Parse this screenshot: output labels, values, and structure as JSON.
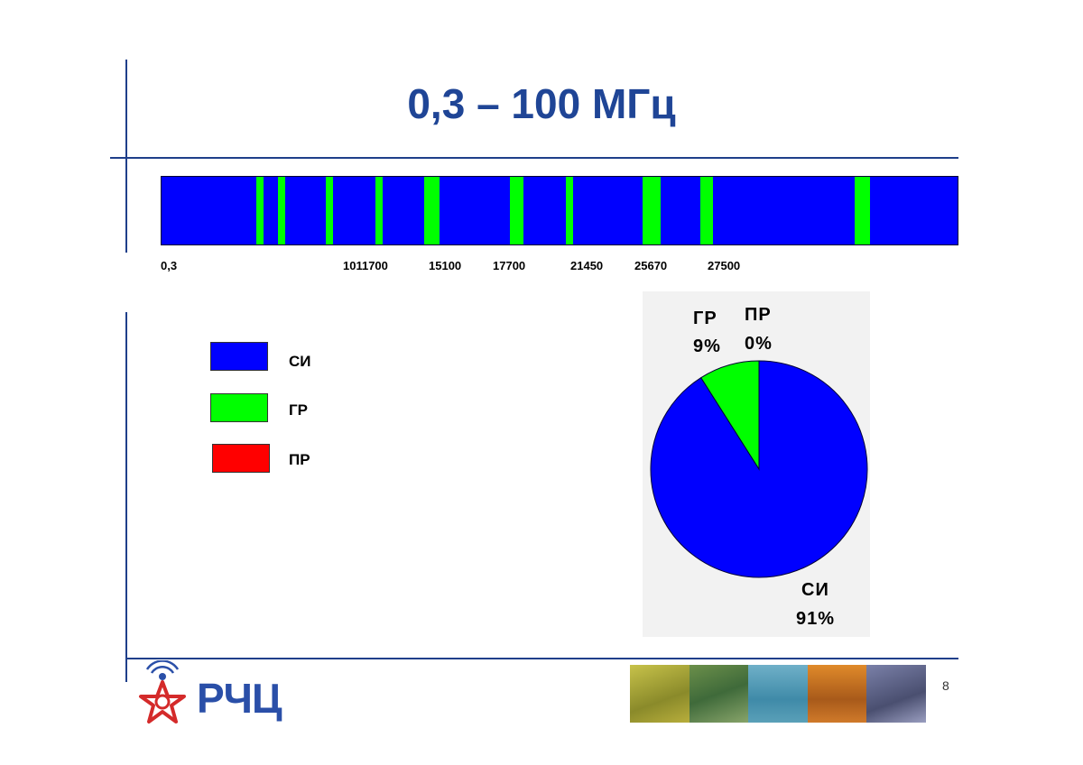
{
  "slide": {
    "title": "0,3 – 100  МГц",
    "page_number": "8",
    "logo_text": "РЧЦ"
  },
  "band_chart": {
    "bar_color": "#0000ff",
    "band_color": "#00ff00",
    "labels": [
      "0,3",
      "1011700",
      "15100",
      "17700",
      "21450",
      "25670",
      "27500"
    ]
  },
  "legend": {
    "items": [
      {
        "label": "СИ",
        "color": "#0000ff"
      },
      {
        "label": "ГР",
        "color": "#00ff00"
      },
      {
        "label": "ПР",
        "color": "#ff0000"
      }
    ]
  },
  "chart_data": {
    "type": "pie",
    "categories": [
      "СИ",
      "ГР",
      "ПР"
    ],
    "values": [
      91,
      9,
      0
    ],
    "value_labels": [
      "91%",
      "9%",
      "0%"
    ],
    "colors": [
      "#0000ff",
      "#00ff00",
      "#ff0000"
    ]
  },
  "colors": {
    "title": "#1f4596",
    "rule": "#1f3f8a"
  }
}
